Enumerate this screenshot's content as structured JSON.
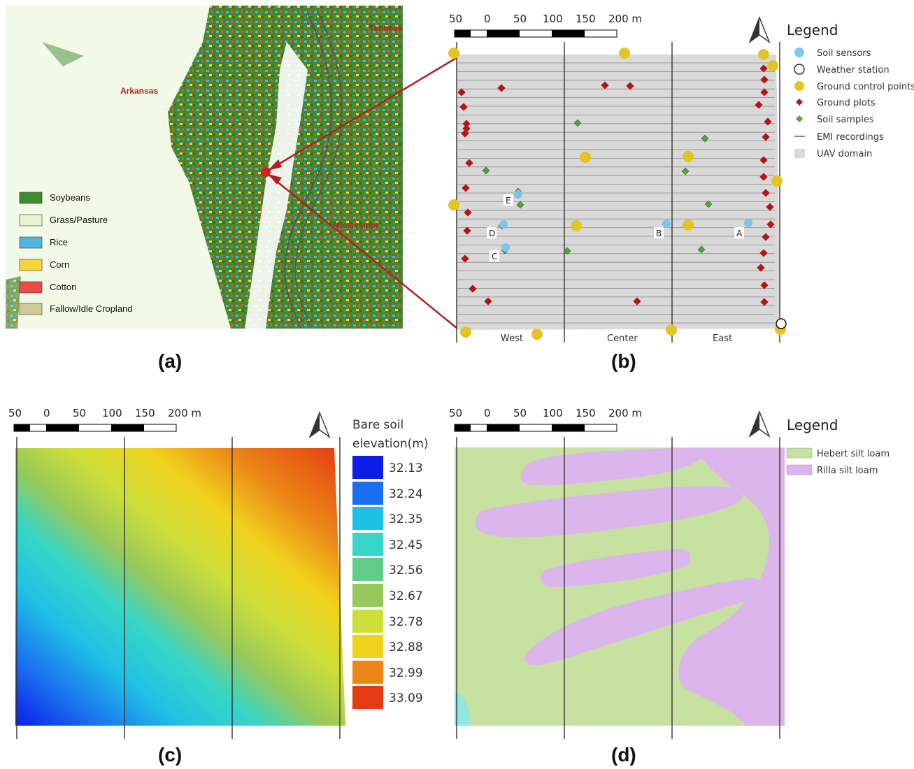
{
  "panel_labels": {
    "a": "(a)",
    "b": "(b)",
    "c": "(c)",
    "d": "(d)"
  },
  "panel_a": {
    "places": {
      "arkansas": "Arkansas",
      "mississippi": "Mississippi",
      "tennessee": "Tenness"
    },
    "legend": [
      {
        "label": "Soybeans",
        "color": "#3f8a2e"
      },
      {
        "label": "Grass/Pasture",
        "color": "#e8f6cf"
      },
      {
        "label": "Rice",
        "color": "#4fb4e2"
      },
      {
        "label": "Corn",
        "color": "#f5d53c"
      },
      {
        "label": "Cotton",
        "color": "#ef4a48"
      },
      {
        "label": "Fallow/Idle Cropland",
        "color": "#cfcb97"
      }
    ]
  },
  "scale_bar": {
    "ticks": [
      "50",
      "0",
      "50",
      "100",
      "150",
      "200 m"
    ]
  },
  "panel_b": {
    "legend_title": "Legend",
    "legend": [
      {
        "label": "Soil sensors",
        "symbol": "circle",
        "color": "#7dc4ee"
      },
      {
        "label": "Weather station",
        "symbol": "open-circle",
        "color": "#222222"
      },
      {
        "label": "Ground control points",
        "symbol": "circle",
        "color": "#e3c423"
      },
      {
        "label": "Ground plots",
        "symbol": "diamond",
        "color": "#b31414"
      },
      {
        "label": "Soil samples",
        "symbol": "diamond",
        "color": "#4ea43d"
      },
      {
        "label": "EMI recordings",
        "symbol": "line",
        "color": "#888888"
      },
      {
        "label": "UAV domain",
        "symbol": "square",
        "color": "#d9d9d9"
      }
    ],
    "zones": {
      "west": "West",
      "center": "Center",
      "east": "East"
    },
    "sensors": {
      "a": "A",
      "b": "B",
      "c": "C",
      "d": "D",
      "e": "E"
    }
  },
  "panel_c": {
    "legend_title_1": "Bare soil",
    "legend_title_2": "elevation(m)",
    "legend": [
      {
        "value": "32.13",
        "color": "#0a1ee8"
      },
      {
        "value": "32.24",
        "color": "#1a6ef0"
      },
      {
        "value": "32.35",
        "color": "#1fc0e6"
      },
      {
        "value": "32.45",
        "color": "#37d6c6"
      },
      {
        "value": "32.56",
        "color": "#62cc8a"
      },
      {
        "value": "32.67",
        "color": "#97c95a"
      },
      {
        "value": "32.78",
        "color": "#cdde3a"
      },
      {
        "value": "32.88",
        "color": "#f0d21d"
      },
      {
        "value": "32.99",
        "color": "#ec8617"
      },
      {
        "value": "33.09",
        "color": "#e33b12"
      }
    ]
  },
  "panel_d": {
    "legend_title": "Legend",
    "legend": [
      {
        "label": "Hebert silt loam",
        "color": "#c7e1a1"
      },
      {
        "label": "Rilla silt loam",
        "color": "#dbb5ec"
      }
    ]
  }
}
